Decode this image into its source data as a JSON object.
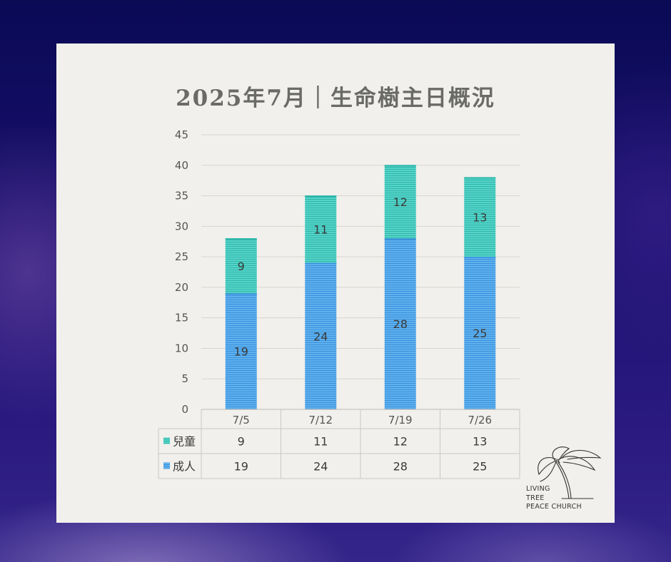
{
  "title": "2025年7月｜生命樹主日概況",
  "logo": {
    "line1": "LIVING",
    "line2": "TREE",
    "line3": "PEACE CHURCH"
  },
  "colors": {
    "children": "#3fc9bd",
    "adults": "#4aa3ea"
  },
  "chart_data": {
    "type": "bar",
    "stacked": true,
    "categories": [
      "7/5",
      "7/12",
      "7/19",
      "7/26"
    ],
    "series": [
      {
        "name": "成人",
        "values": [
          19,
          24,
          28,
          25
        ],
        "color": "#4aa3ea"
      },
      {
        "name": "兒童",
        "values": [
          9,
          11,
          12,
          13
        ],
        "color": "#3fc9bd"
      }
    ],
    "ylim": [
      0,
      45
    ],
    "yticks": [
      0,
      5,
      10,
      15,
      20,
      25,
      30,
      35,
      40,
      45
    ],
    "grid": true,
    "legend": "data-table",
    "table_rows": [
      "兒童",
      "成人"
    ]
  }
}
